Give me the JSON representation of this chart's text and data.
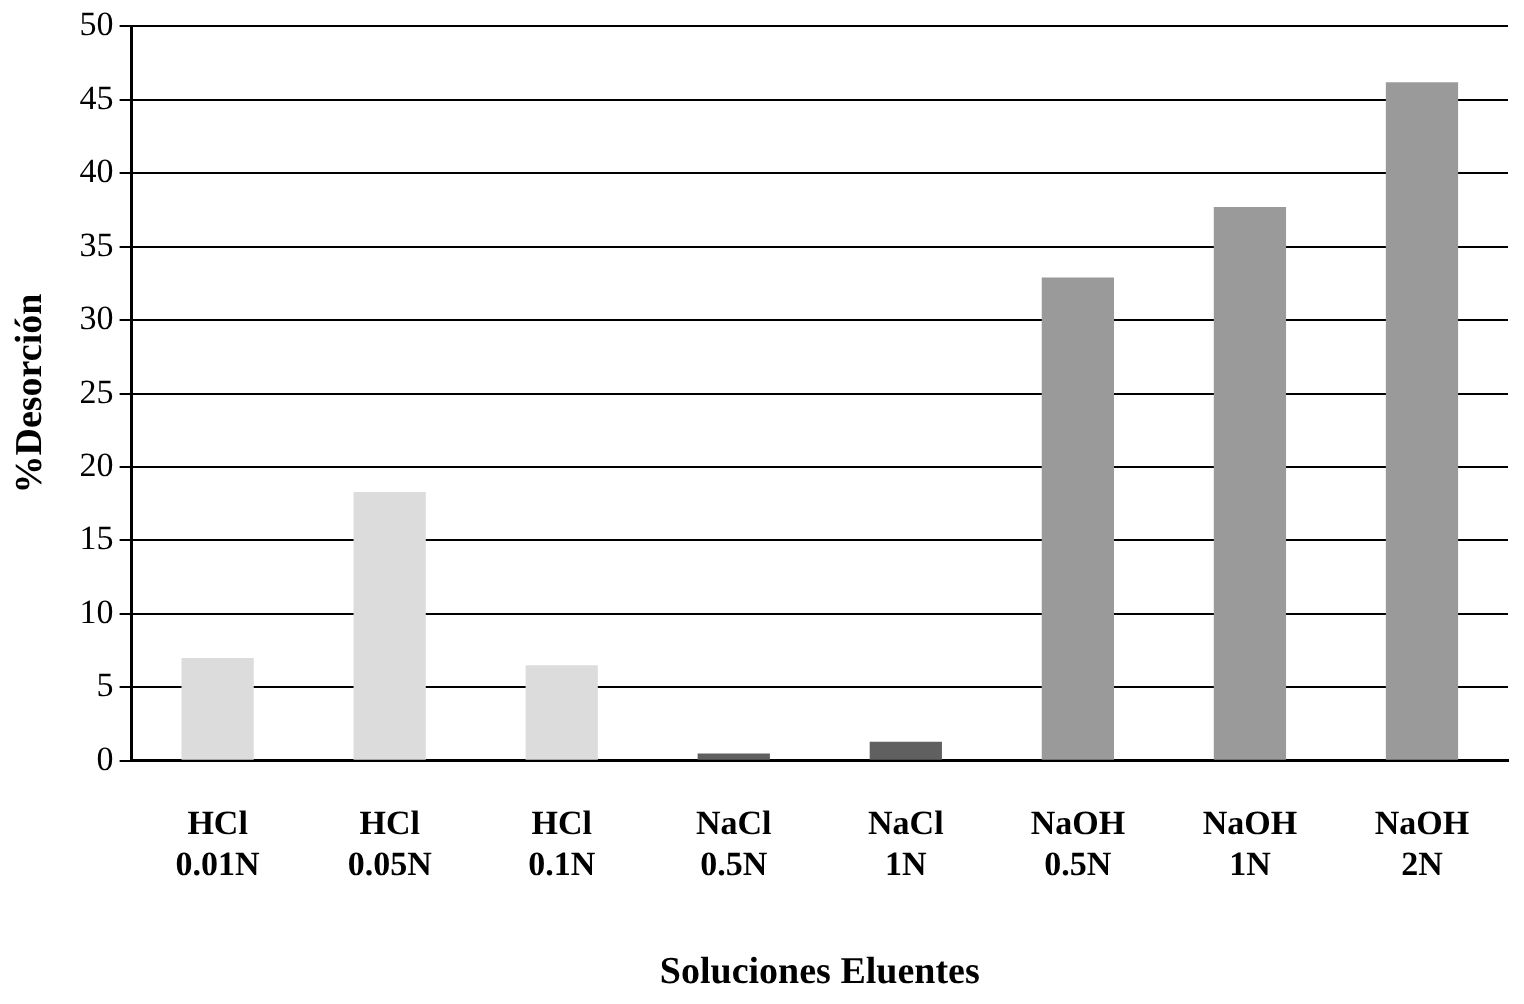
{
  "chart_data": {
    "type": "bar",
    "xlabel": "Soluciones Eluentes",
    "ylabel": "%Desorción",
    "categories": [
      "HCl\n0.01N",
      "HCl\n0.05N",
      "HCl\n0.1N",
      "NaCl\n0.5N",
      "NaCl\n1N",
      "NaOH\n0.5N",
      "NaOH\n1N",
      "NaOH\n2N"
    ],
    "values": [
      7.0,
      18.3,
      6.5,
      0.5,
      1.3,
      32.9,
      37.7,
      46.2
    ],
    "colors": [
      "#dcdcdc",
      "#dcdcdc",
      "#dcdcdc",
      "#606060",
      "#606060",
      "#9a9a9a",
      "#9a9a9a",
      "#9a9a9a"
    ],
    "ylim": [
      0,
      50
    ],
    "yticks": [
      0,
      5,
      10,
      15,
      20,
      25,
      30,
      35,
      40,
      45,
      50
    ],
    "grid": "y",
    "legend": false
  }
}
